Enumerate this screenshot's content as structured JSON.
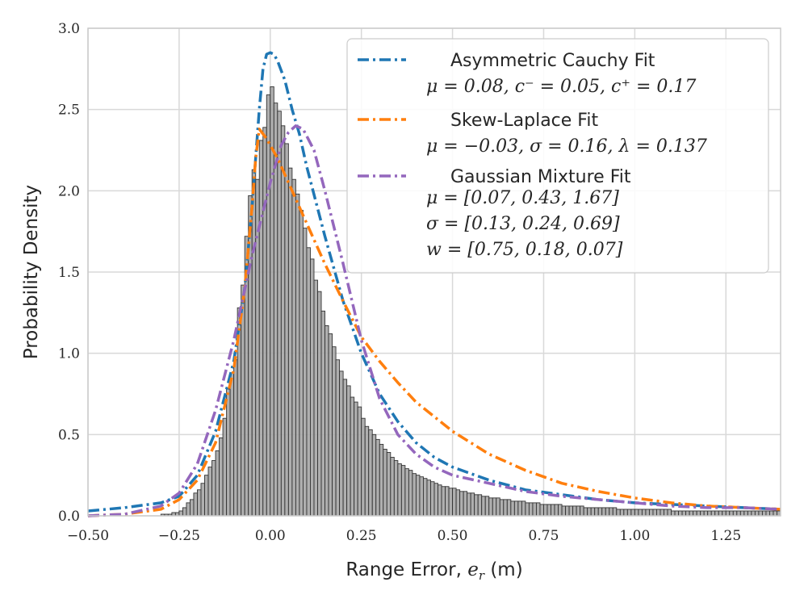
{
  "chart_data": {
    "type": "histogram-with-fits",
    "xlabel": "Range Error, e_r (m)",
    "ylabel": "Probability Density",
    "xlim": [
      -0.5,
      1.4
    ],
    "ylim": [
      0,
      3.0
    ],
    "x_ticks": [
      -0.5,
      -0.25,
      0.0,
      0.25,
      0.5,
      0.75,
      1.0,
      1.25
    ],
    "x_tick_labels": [
      "−0.50",
      "−0.25",
      "0.00",
      "0.25",
      "0.50",
      "0.75",
      "1.00",
      "1.25"
    ],
    "y_ticks": [
      0.0,
      0.5,
      1.0,
      1.5,
      2.0,
      2.5,
      3.0
    ],
    "y_tick_labels": [
      "0.0",
      "0.5",
      "1.0",
      "1.5",
      "2.0",
      "2.5",
      "3.0"
    ],
    "grid": true,
    "legend_position": "top-right",
    "histogram": {
      "bin_start": -0.5,
      "bin_width": 0.01,
      "color": "#a6a6a6",
      "edge_color": "#333333",
      "densities": [
        0.0,
        0.0,
        0.0,
        0.0,
        0.0,
        0.0,
        0.0,
        0.0,
        0.0,
        0.0,
        0.0,
        0.0,
        0.0,
        0.0,
        0.0,
        0.0,
        0.0,
        0.0,
        0.0,
        0.0,
        0.01,
        0.01,
        0.01,
        0.02,
        0.02,
        0.03,
        0.05,
        0.08,
        0.1,
        0.14,
        0.16,
        0.2,
        0.25,
        0.3,
        0.34,
        0.4,
        0.48,
        0.6,
        0.78,
        0.88,
        0.96,
        1.28,
        1.42,
        1.72,
        1.97,
        2.13,
        2.07,
        2.31,
        2.39,
        2.59,
        2.64,
        2.54,
        2.49,
        2.4,
        2.29,
        2.14,
        2.07,
        1.98,
        1.88,
        1.77,
        1.65,
        1.58,
        1.45,
        1.38,
        1.26,
        1.17,
        1.12,
        1.04,
        0.96,
        0.89,
        0.84,
        0.8,
        0.73,
        0.7,
        0.67,
        0.6,
        0.55,
        0.53,
        0.5,
        0.47,
        0.44,
        0.41,
        0.39,
        0.36,
        0.34,
        0.32,
        0.31,
        0.29,
        0.28,
        0.26,
        0.25,
        0.24,
        0.23,
        0.22,
        0.21,
        0.2,
        0.19,
        0.18,
        0.18,
        0.17,
        0.17,
        0.16,
        0.15,
        0.15,
        0.14,
        0.14,
        0.13,
        0.13,
        0.12,
        0.12,
        0.11,
        0.11,
        0.11,
        0.1,
        0.1,
        0.1,
        0.09,
        0.09,
        0.09,
        0.09,
        0.08,
        0.08,
        0.08,
        0.08,
        0.07,
        0.07,
        0.07,
        0.07,
        0.07,
        0.07,
        0.06,
        0.06,
        0.06,
        0.06,
        0.06,
        0.06,
        0.05,
        0.05,
        0.05,
        0.05,
        0.05,
        0.05,
        0.05,
        0.05,
        0.05,
        0.04,
        0.04,
        0.04,
        0.04,
        0.04,
        0.04,
        0.04,
        0.04,
        0.04,
        0.04,
        0.04,
        0.04,
        0.04,
        0.04,
        0.04,
        0.03,
        0.03,
        0.03,
        0.03,
        0.03,
        0.03,
        0.03,
        0.03,
        0.03,
        0.03,
        0.03,
        0.03,
        0.03,
        0.03,
        0.03,
        0.03,
        0.03,
        0.03,
        0.03,
        0.03,
        0.03,
        0.03,
        0.03,
        0.03,
        0.03,
        0.03,
        0.03,
        0.03,
        0.03,
        0.03
      ]
    },
    "series": [
      {
        "name": "Asymmetric Cauchy Fit",
        "params_text": "μ = 0.08, c⁻ = 0.05, c⁺ = 0.17",
        "color": "#1f77b4",
        "x": [
          -0.5,
          -0.4,
          -0.3,
          -0.25,
          -0.2,
          -0.15,
          -0.1,
          -0.07,
          -0.05,
          -0.03,
          -0.02,
          -0.01,
          0.0,
          0.01,
          0.02,
          0.04,
          0.06,
          0.08,
          0.1,
          0.15,
          0.2,
          0.25,
          0.3,
          0.35,
          0.4,
          0.45,
          0.5,
          0.6,
          0.7,
          0.8,
          0.9,
          1.0,
          1.1,
          1.2,
          1.3,
          1.4
        ],
        "y": [
          0.03,
          0.05,
          0.08,
          0.12,
          0.25,
          0.52,
          0.95,
          1.4,
          1.9,
          2.5,
          2.75,
          2.84,
          2.85,
          2.84,
          2.8,
          2.68,
          2.5,
          2.35,
          2.15,
          1.72,
          1.32,
          1.0,
          0.75,
          0.58,
          0.45,
          0.36,
          0.3,
          0.22,
          0.16,
          0.13,
          0.1,
          0.08,
          0.07,
          0.06,
          0.05,
          0.04
        ]
      },
      {
        "name": "Skew-Laplace Fit",
        "params_text": "μ = −0.03, σ = 0.16, λ = 0.137",
        "color": "#ff7f0e",
        "x": [
          -0.5,
          -0.4,
          -0.3,
          -0.25,
          -0.2,
          -0.15,
          -0.1,
          -0.07,
          -0.05,
          -0.04,
          -0.03,
          -0.02,
          -0.01,
          0.0,
          0.02,
          0.05,
          0.1,
          0.15,
          0.2,
          0.25,
          0.3,
          0.35,
          0.4,
          0.5,
          0.6,
          0.7,
          0.8,
          0.9,
          1.0,
          1.1,
          1.2,
          1.3,
          1.4
        ],
        "y": [
          0.0,
          0.01,
          0.04,
          0.1,
          0.22,
          0.45,
          0.9,
          1.4,
          1.9,
          2.2,
          2.38,
          2.35,
          2.32,
          2.28,
          2.2,
          2.05,
          1.8,
          1.55,
          1.32,
          1.1,
          0.95,
          0.82,
          0.7,
          0.52,
          0.38,
          0.28,
          0.2,
          0.15,
          0.11,
          0.08,
          0.06,
          0.05,
          0.04
        ]
      },
      {
        "name": "Gaussian Mixture Fit",
        "params_lines": [
          "μ = [0.07, 0.43, 1.67]",
          "σ = [0.13, 0.24, 0.69]",
          "w = [0.75, 0.18, 0.07]"
        ],
        "color": "#9467bd",
        "x": [
          -0.5,
          -0.4,
          -0.3,
          -0.25,
          -0.2,
          -0.15,
          -0.1,
          -0.05,
          0.0,
          0.03,
          0.05,
          0.07,
          0.09,
          0.12,
          0.15,
          0.2,
          0.25,
          0.3,
          0.35,
          0.4,
          0.45,
          0.5,
          0.6,
          0.7,
          0.8,
          0.9,
          1.0,
          1.1,
          1.2,
          1.3,
          1.4
        ],
        "y": [
          0.0,
          0.01,
          0.06,
          0.14,
          0.32,
          0.65,
          1.08,
          1.6,
          2.05,
          2.28,
          2.36,
          2.4,
          2.38,
          2.25,
          2.0,
          1.55,
          1.08,
          0.72,
          0.5,
          0.38,
          0.3,
          0.25,
          0.2,
          0.15,
          0.12,
          0.1,
          0.08,
          0.06,
          0.05,
          0.05,
          0.04
        ]
      }
    ]
  }
}
